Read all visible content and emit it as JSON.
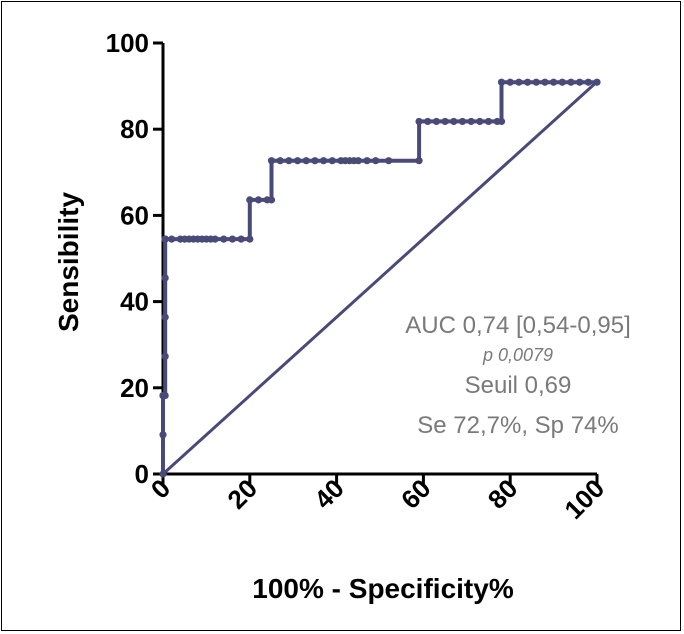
{
  "chart_data": {
    "type": "line",
    "xlabel": "100% - Specificity%",
    "ylabel": "Sensibility",
    "xlim": [
      0,
      100
    ],
    "ylim": [
      0,
      100
    ],
    "x_ticks": [
      "0",
      "20",
      "40",
      "60",
      "80",
      "100"
    ],
    "y_ticks": [
      "0",
      "20",
      "40",
      "60",
      "80",
      "100"
    ],
    "series": [
      {
        "type": "roc",
        "x": [
          0,
          0,
          0,
          0,
          0.5,
          0.5,
          0.5,
          0.5,
          0.5,
          0.5,
          0.5,
          0.5,
          2,
          4,
          5,
          6,
          7,
          8,
          9,
          10,
          11,
          12,
          14,
          16,
          18,
          20,
          20,
          22,
          24,
          25,
          25,
          27,
          29,
          31,
          33,
          35,
          37,
          39,
          41,
          42,
          43,
          44,
          45,
          47,
          49,
          52,
          59,
          59,
          61,
          63,
          65,
          67,
          69,
          71,
          73,
          75,
          77,
          78,
          78,
          80,
          82,
          84,
          86,
          88,
          90,
          92,
          94,
          96,
          98,
          100
        ],
        "y": [
          0,
          9.1,
          18.2,
          18.2,
          18.2,
          27.3,
          36.4,
          45.5,
          54.5,
          54.5,
          54.5,
          54.5,
          54.5,
          54.5,
          54.5,
          54.5,
          54.5,
          54.5,
          54.5,
          54.5,
          54.5,
          54.5,
          54.5,
          54.5,
          54.5,
          54.5,
          63.6,
          63.6,
          63.6,
          63.6,
          72.7,
          72.7,
          72.7,
          72.7,
          72.7,
          72.7,
          72.7,
          72.7,
          72.7,
          72.7,
          72.7,
          72.7,
          72.7,
          72.7,
          72.7,
          72.7,
          72.7,
          81.8,
          81.8,
          81.8,
          81.8,
          81.8,
          81.8,
          81.8,
          81.8,
          81.8,
          81.8,
          81.8,
          90.9,
          90.9,
          90.9,
          90.9,
          90.9,
          90.9,
          90.9,
          90.9,
          90.9,
          90.9,
          90.9,
          90.9
        ]
      },
      {
        "type": "reference",
        "x": [
          0,
          100
        ],
        "y": [
          0,
          91
        ]
      }
    ],
    "annotations": {
      "auc": "AUC 0,74 [0,54-0,95]",
      "p": "p 0,0079",
      "seuil": "Seuil 0,69",
      "se_sp": "Se 72,7%, Sp 74%"
    },
    "colors": {
      "series": "#4a4a78",
      "annotation": "#7a7a7a",
      "axis": "#000000"
    },
    "grid": false
  }
}
